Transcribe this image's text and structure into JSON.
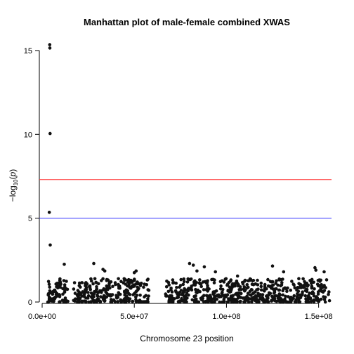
{
  "chart_data": {
    "type": "scatter",
    "title": "Manhattan plot of male-female combined XWAS",
    "xlabel": "Chromosome 23 position",
    "ylabel_parts": [
      "−log",
      "10",
      "(",
      "p",
      ")"
    ],
    "xlim": [
      0,
      157000000
    ],
    "ylim": [
      0,
      15.5
    ],
    "x_ticks": [
      0,
      50000000,
      100000000,
      150000000
    ],
    "x_tick_labels": [
      "0.0e+00",
      "5.0e+07",
      "1.0e+08",
      "1.5e+08"
    ],
    "y_ticks": [
      0,
      5,
      10,
      15
    ],
    "y_tick_labels": [
      "0",
      "5",
      "10",
      "15"
    ],
    "thresholds": [
      {
        "value": 7.3,
        "color": "#ff3333"
      },
      {
        "value": 5.0,
        "color": "#3333ff"
      }
    ],
    "point_color": "#111111",
    "highlight_points": [
      {
        "x": 4100000,
        "y": 15.35
      },
      {
        "x": 4200000,
        "y": 15.15
      },
      {
        "x": 4300000,
        "y": 10.05
      },
      {
        "x": 3900000,
        "y": 5.35
      },
      {
        "x": 4400000,
        "y": 3.4
      },
      {
        "x": 12000000,
        "y": 2.25
      },
      {
        "x": 28000000,
        "y": 2.3
      },
      {
        "x": 34000000,
        "y": 1.85
      },
      {
        "x": 33000000,
        "y": 1.95
      },
      {
        "x": 50000000,
        "y": 1.75
      },
      {
        "x": 51000000,
        "y": 1.85
      },
      {
        "x": 80000000,
        "y": 2.3
      },
      {
        "x": 82000000,
        "y": 2.2
      },
      {
        "x": 84000000,
        "y": 1.85
      },
      {
        "x": 88000000,
        "y": 2.1
      },
      {
        "x": 94000000,
        "y": 1.8
      },
      {
        "x": 106000000,
        "y": 1.55
      },
      {
        "x": 125000000,
        "y": 2.15
      },
      {
        "x": 131000000,
        "y": 1.8
      },
      {
        "x": 148000000,
        "y": 2.05
      },
      {
        "x": 148500000,
        "y": 1.9
      },
      {
        "x": 153000000,
        "y": 1.8
      }
    ],
    "background_points": {
      "count": 900,
      "x_range": [
        3000000,
        156000000
      ],
      "gaps": [
        [
          14000000,
          17000000
        ],
        [
          58000000,
          67000000
        ]
      ],
      "y_max": 1.4
    }
  }
}
